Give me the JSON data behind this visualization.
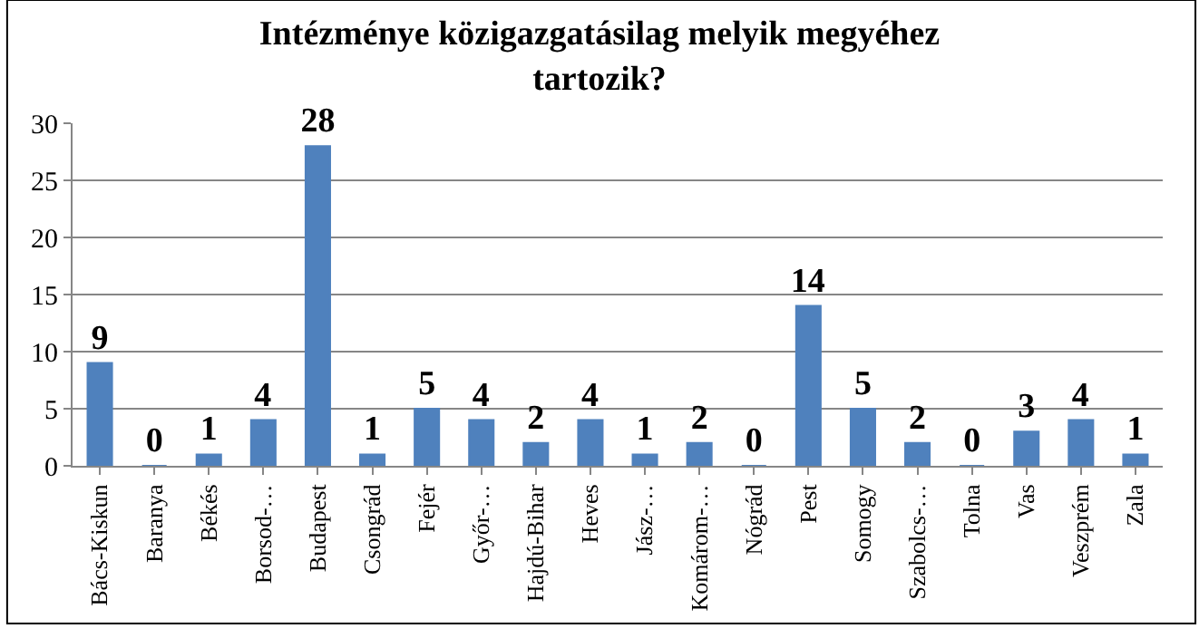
{
  "chart_data": {
    "type": "bar",
    "title": "Intézménye közigazgatásilag melyik megyéhez tartozik?",
    "categories": [
      "Bács-Kiskun",
      "Baranya",
      "Békés",
      "Borsod-…",
      "Budapest",
      "Csongrád",
      "Fejér",
      "Győr-…",
      "Hajdú-Bihar",
      "Heves",
      "Jász-…",
      "Komárom-…",
      "Nógrád",
      "Pest",
      "Somogy",
      "Szabolcs-…",
      "Tolna",
      "Vas",
      "Veszprém",
      "Zala"
    ],
    "values": [
      9,
      0,
      1,
      4,
      28,
      1,
      5,
      4,
      2,
      4,
      1,
      2,
      0,
      14,
      5,
      2,
      0,
      3,
      4,
      1
    ],
    "color": "#4f81bd",
    "ylim": [
      0,
      30
    ],
    "yticks": [
      0,
      5,
      10,
      15,
      20,
      25,
      30
    ],
    "grid": "y",
    "data_labels": true,
    "legend": false
  }
}
